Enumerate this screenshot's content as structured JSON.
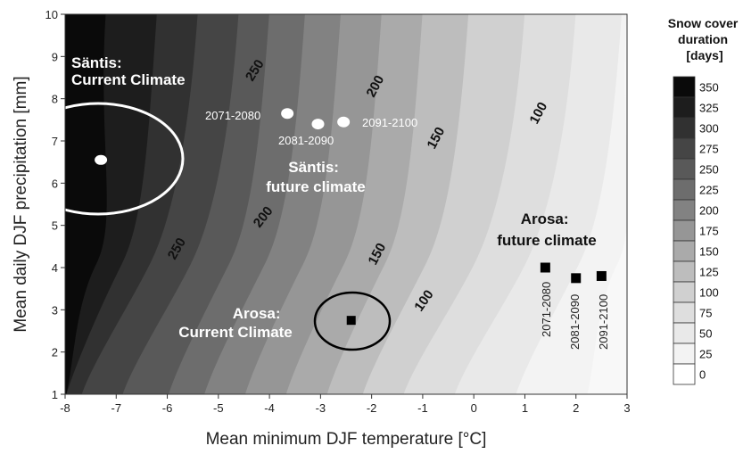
{
  "chart_data": {
    "type": "contour",
    "xlabel": "Mean minimum DJF temperature [°C]",
    "ylabel": "Mean daily DJF precipitation [mm]",
    "xlim": [
      -8,
      3
    ],
    "ylim": [
      1,
      10
    ],
    "x_ticks": [
      "-8",
      "-7",
      "-6",
      "-5",
      "-4",
      "-3",
      "-2",
      "-1",
      "0",
      "1",
      "2",
      "3"
    ],
    "y_ticks": [
      "1",
      "2",
      "3",
      "4",
      "5",
      "6",
      "7",
      "8",
      "9",
      "10"
    ],
    "legend": {
      "title_lines": [
        "Snow cover",
        "duration",
        "[days]"
      ],
      "levels": [
        "350",
        "325",
        "300",
        "275",
        "250",
        "225",
        "200",
        "175",
        "150",
        "125",
        "100",
        "75",
        "50",
        "25",
        "0"
      ],
      "colors": [
        "#0a0a0a",
        "#1d1d1d",
        "#313131",
        "#454545",
        "#595959",
        "#6d6d6d",
        "#828282",
        "#969696",
        "#aaaaaa",
        "#bdbdbd",
        "#d0d0d0",
        "#dedede",
        "#e9e9e9",
        "#f3f3f3",
        "#ffffff"
      ]
    },
    "contour_labels": [
      "250",
      "200",
      "150",
      "100",
      "250",
      "200",
      "150",
      "100"
    ],
    "annotations": {
      "santis_current": [
        "Säntis:",
        "Current Climate"
      ],
      "santis_future": [
        "Säntis:",
        "future climate"
      ],
      "arosa_current": [
        "Arosa:",
        "Current Climate"
      ],
      "arosa_future": [
        "Arosa:",
        "future climate"
      ]
    },
    "points": {
      "santis_current": {
        "x": -7.3,
        "y": 6.55
      },
      "santis_future": [
        {
          "label": "2071-2080",
          "x": -3.65,
          "y": 7.65
        },
        {
          "label": "2081-2090",
          "x": -3.05,
          "y": 7.4
        },
        {
          "label": "2091-2100",
          "x": -2.55,
          "y": 7.45
        }
      ],
      "arosa_current": {
        "x": -2.4,
        "y": 2.75
      },
      "arosa_future": [
        {
          "label": "2071-2080",
          "x": 1.4,
          "y": 4.0
        },
        {
          "label": "2081-2090",
          "x": 2.0,
          "y": 3.75
        },
        {
          "label": "2091-2100",
          "x": 2.5,
          "y": 3.8
        }
      ]
    },
    "bands": [
      {
        "level": 350,
        "color": "#0a0a0a",
        "bottom_x": -8.0,
        "top_x": -7.2
      },
      {
        "level": 325,
        "color": "#1d1d1d",
        "bottom_x": -8.0,
        "top_x": -6.2
      },
      {
        "level": 300,
        "color": "#313131",
        "bottom_x": -7.7,
        "top_x": -5.4
      },
      {
        "level": 275,
        "color": "#454545",
        "bottom_x": -6.9,
        "top_x": -4.6
      },
      {
        "level": 250,
        "color": "#595959",
        "bottom_x": -6.0,
        "top_x": -4.0
      },
      {
        "level": 225,
        "color": "#6d6d6d",
        "bottom_x": -5.3,
        "top_x": -3.3
      },
      {
        "level": 200,
        "color": "#828282",
        "bottom_x": -4.5,
        "top_x": -2.6
      },
      {
        "level": 175,
        "color": "#969696",
        "bottom_x": -3.7,
        "top_x": -1.8
      },
      {
        "level": 150,
        "color": "#aaaaaa",
        "bottom_x": -2.9,
        "top_x": -1.0
      },
      {
        "level": 125,
        "color": "#bdbdbd",
        "bottom_x": -2.2,
        "top_x": -0.1
      },
      {
        "level": 100,
        "color": "#d0d0d0",
        "bottom_x": -1.4,
        "top_x": 1.0
      },
      {
        "level": 75,
        "color": "#dedede",
        "bottom_x": -0.4,
        "top_x": 2.0
      },
      {
        "level": 50,
        "color": "#e9e9e9",
        "bottom_x": 0.8,
        "top_x": 2.9
      },
      {
        "level": 25,
        "color": "#f3f3f3",
        "bottom_x": 2.2,
        "top_x": 3.0
      }
    ]
  }
}
